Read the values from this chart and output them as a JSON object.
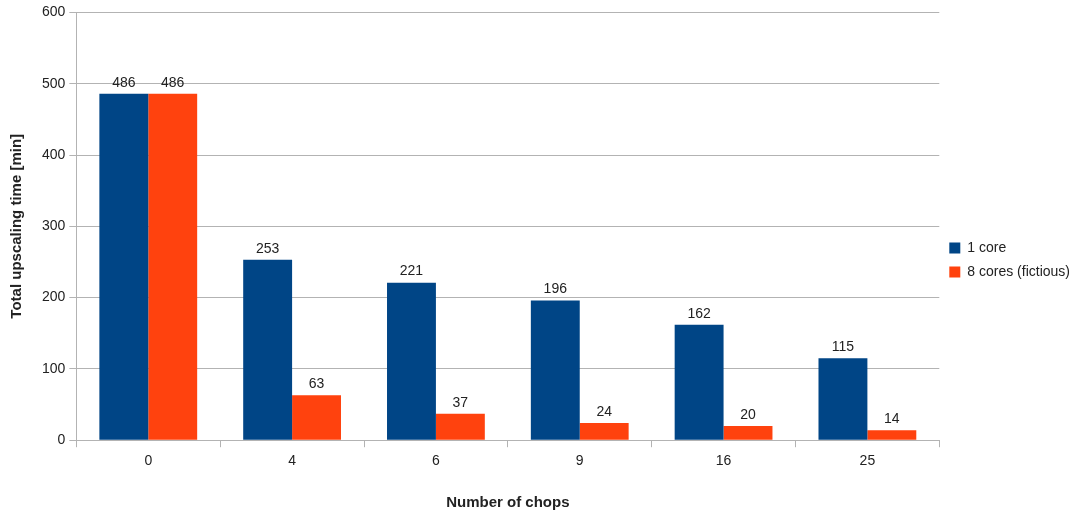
{
  "chart_data": {
    "type": "bar",
    "categories": [
      "0",
      "4",
      "6",
      "9",
      "16",
      "25"
    ],
    "series": [
      {
        "name": "1 core",
        "color": "#004586",
        "values": [
          486,
          253,
          221,
          196,
          162,
          115
        ]
      },
      {
        "name": "8 cores (fictious)",
        "color": "#ff420e",
        "values": [
          486,
          63,
          37,
          24,
          20,
          14
        ]
      }
    ],
    "xlabel": "Number of chops",
    "ylabel": "Total upscaling time [min]",
    "ylim": [
      0,
      600
    ],
    "yticks": [
      0,
      100,
      200,
      300,
      400,
      500,
      600
    ],
    "grid": "y",
    "legend": "right",
    "data_labels": true
  }
}
